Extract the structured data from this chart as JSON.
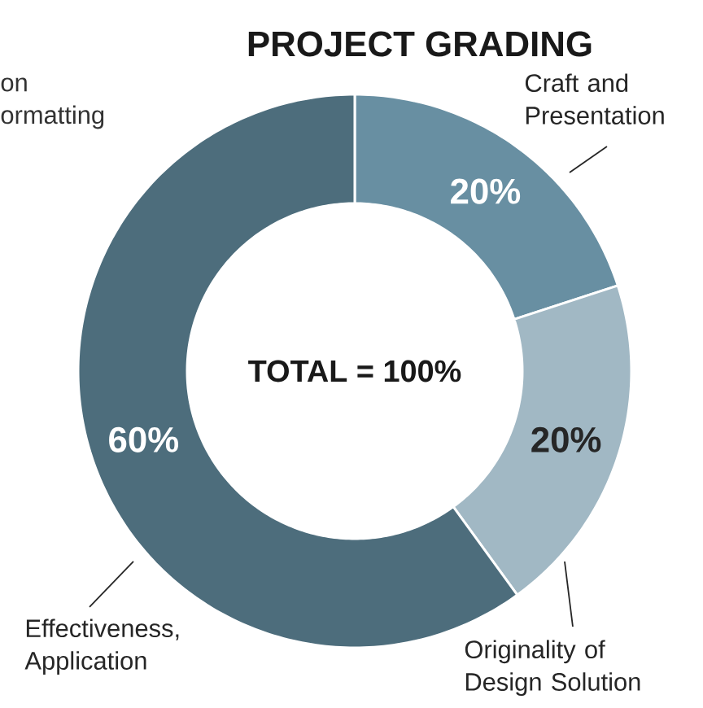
{
  "chart_data": {
    "type": "donut",
    "title": "PROJECT GRADING",
    "categories": [
      "Craft and Presentation",
      "Originality of Design Solution",
      "Effectiveness, Application"
    ],
    "values": [
      20,
      20,
      60
    ],
    "colors": [
      "#688fa2",
      "#a1b8c4",
      "#4d6d7c"
    ],
    "value_labels": [
      "20%",
      "20%",
      "60%"
    ],
    "annotations": [
      "TOTAL = 100%",
      "on",
      "ormatting"
    ]
  }
}
